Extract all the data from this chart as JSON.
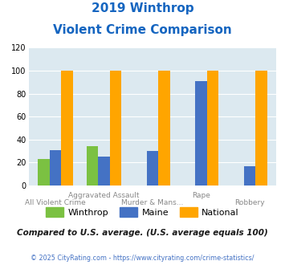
{
  "title_line1": "2019 Winthrop",
  "title_line2": "Violent Crime Comparison",
  "categories": [
    "All Violent Crime",
    "Aggravated Assault",
    "Murder & Mans...",
    "Rape",
    "Robbery"
  ],
  "row1_labels": [
    "",
    "Aggravated Assault",
    "",
    "Rape",
    ""
  ],
  "row2_labels": [
    "All Violent Crime",
    "",
    "Murder & Mans...",
    "",
    "Robbery"
  ],
  "winthrop": [
    23,
    34,
    0,
    0,
    0
  ],
  "maine": [
    31,
    25,
    30,
    91,
    17
  ],
  "national": [
    100,
    100,
    100,
    100,
    100
  ],
  "winthrop_color": "#7bc142",
  "maine_color": "#4472c4",
  "national_color": "#ffa500",
  "ylim": [
    0,
    120
  ],
  "yticks": [
    0,
    20,
    40,
    60,
    80,
    100,
    120
  ],
  "plot_bg": "#dce9f0",
  "title_color": "#1565c0",
  "note": "Compared to U.S. average. (U.S. average equals 100)",
  "footer": "© 2025 CityRating.com - https://www.cityrating.com/crime-statistics/",
  "note_color": "#1a1a1a",
  "footer_color": "#4472c4",
  "label_color": "#888888"
}
